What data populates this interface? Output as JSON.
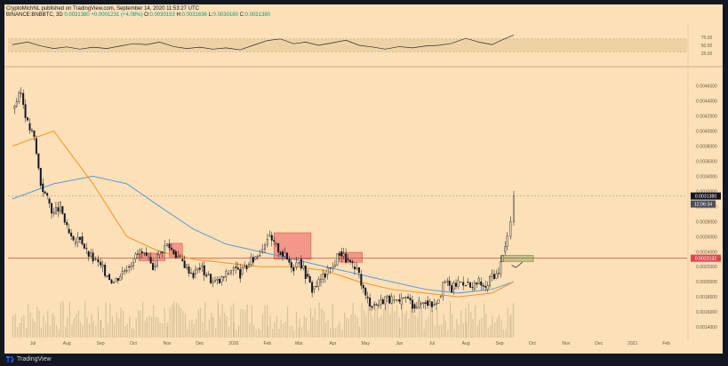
{
  "header": {
    "line1": "CryptoMichNL published on TradingView.com, September 14, 2020 11:53:27 UTC",
    "symbol": "BINANCE:BNBBTC, 3D",
    "last": "0.0031380",
    "change": "+0.0001231 (+4.08%)",
    "o_label": "O:",
    "o_value": "0.0030153",
    "h_label": "H:",
    "h_value": "0.0031636",
    "l_label": "L:",
    "l_value": "0.0030180",
    "c_label": "C:",
    "c_value": "0.0031380"
  },
  "footer": {
    "brand": "TradingView"
  },
  "colors": {
    "background": "#fbe0b8",
    "candle": "#131722",
    "ma_fast": "#f7931a",
    "ma_slow": "#5b9bd5",
    "hline": "#e0474c",
    "box_red": "#f28c80",
    "box_green": "#b7c98a",
    "rsi_band": "#eed2a6"
  },
  "chart_data": [
    {
      "type": "line",
      "name": "price",
      "x_ticks": [
        "Jul",
        "Aug",
        "Sep",
        "Oct",
        "Nov",
        "Dec",
        "2020",
        "Feb",
        "Mar",
        "Apr",
        "May",
        "Jun",
        "Jul",
        "Aug",
        "Sep",
        "Oct",
        "Nov",
        "Dec",
        "2021",
        "Feb"
      ],
      "y_ticks": [
        "0.0046000",
        "0.0044000",
        "0.0042000",
        "0.0040000",
        "0.0038000",
        "0.0036000",
        "0.0034000",
        "0.0032000",
        "0.0030000",
        "0.0028000",
        "0.0026000",
        "0.0024000",
        "0.0022000",
        "0.0020000",
        "0.0018000",
        "0.0016000",
        "0.0014000"
      ],
      "ylim": [
        0.00126,
        0.00476
      ],
      "series": [
        {
          "name": "BNBBTC",
          "x": [
            "2019-06-12",
            "2019-06-20",
            "2019-06-26",
            "2019-07-02",
            "2019-07-08",
            "2019-07-14",
            "2019-07-20",
            "2019-07-26",
            "2019-08-01",
            "2019-08-07",
            "2019-08-13",
            "2019-08-19",
            "2019-08-25",
            "2019-09-01",
            "2019-09-07",
            "2019-09-13",
            "2019-09-19",
            "2019-09-25",
            "2019-10-01",
            "2019-10-07",
            "2019-10-13",
            "2019-10-19",
            "2019-10-25",
            "2019-11-01",
            "2019-11-07",
            "2019-11-13",
            "2019-11-19",
            "2019-11-25",
            "2019-12-01",
            "2019-12-07",
            "2019-12-13",
            "2019-12-19",
            "2019-12-25",
            "2020-01-01",
            "2020-01-07",
            "2020-01-13",
            "2020-01-19",
            "2020-01-25",
            "2020-02-01",
            "2020-02-07",
            "2020-02-13",
            "2020-02-19",
            "2020-02-25",
            "2020-03-01",
            "2020-03-07",
            "2020-03-13",
            "2020-03-19",
            "2020-03-25",
            "2020-04-01",
            "2020-04-07",
            "2020-04-13",
            "2020-04-19",
            "2020-04-25",
            "2020-05-01",
            "2020-05-07",
            "2020-05-13",
            "2020-05-19",
            "2020-05-25",
            "2020-06-01",
            "2020-06-07",
            "2020-06-13",
            "2020-06-19",
            "2020-06-25",
            "2020-07-01",
            "2020-07-07",
            "2020-07-13",
            "2020-07-19",
            "2020-07-25",
            "2020-08-01",
            "2020-08-07",
            "2020-08-13",
            "2020-08-19",
            "2020-08-25",
            "2020-08-31",
            "2020-09-04",
            "2020-09-08",
            "2020-09-11",
            "2020-09-14"
          ],
          "values": [
            0.0043,
            0.0045,
            0.0041,
            0.0039,
            0.0033,
            0.0031,
            0.0029,
            0.003,
            0.0027,
            0.0025,
            0.0026,
            0.0024,
            0.0023,
            0.0022,
            0.0021,
            0.002,
            0.0021,
            0.0022,
            0.0023,
            0.0024,
            0.0023,
            0.0022,
            0.0024,
            0.0025,
            0.0024,
            0.0023,
            0.0022,
            0.0021,
            0.0022,
            0.0021,
            0.002,
            0.002,
            0.0021,
            0.0022,
            0.0021,
            0.0022,
            0.0023,
            0.0024,
            0.0026,
            0.0025,
            0.0024,
            0.0023,
            0.0022,
            0.0023,
            0.0021,
            0.0019,
            0.002,
            0.0021,
            0.0022,
            0.0024,
            0.0023,
            0.0022,
            0.0021,
            0.0018,
            0.0017,
            0.0017,
            0.0018,
            0.00175,
            0.0017,
            0.0018,
            0.0017,
            0.0017,
            0.00175,
            0.0017,
            0.0018,
            0.002,
            0.0019,
            0.002,
            0.002,
            0.0019,
            0.002,
            0.0019,
            0.0021,
            0.0021,
            0.0024,
            0.0026,
            0.0028,
            0.003138
          ]
        },
        {
          "name": "MA fast",
          "x": [
            "2019-06-12",
            "2019-07-20",
            "2019-08-25",
            "2019-09-25",
            "2019-10-25",
            "2019-11-25",
            "2019-12-25",
            "2020-01-25",
            "2020-02-25",
            "2020-03-25",
            "2020-04-25",
            "2020-05-25",
            "2020-06-25",
            "2020-07-25",
            "2020-08-25",
            "2020-09-14"
          ],
          "values": [
            0.0038,
            0.004,
            0.0033,
            0.0026,
            0.0024,
            0.0023,
            0.00225,
            0.0022,
            0.0022,
            0.00215,
            0.002,
            0.0019,
            0.00185,
            0.0018,
            0.00185,
            0.002
          ]
        },
        {
          "name": "MA slow",
          "x": [
            "2019-06-12",
            "2019-07-20",
            "2019-08-25",
            "2019-09-25",
            "2019-10-25",
            "2019-11-25",
            "2019-12-25",
            "2020-01-25",
            "2020-02-25",
            "2020-03-25",
            "2020-04-25",
            "2020-05-25",
            "2020-06-25",
            "2020-07-25",
            "2020-08-25",
            "2020-09-14"
          ],
          "values": [
            0.0031,
            0.0033,
            0.0034,
            0.0033,
            0.003,
            0.0027,
            0.0025,
            0.0024,
            0.0023,
            0.0022,
            0.0021,
            0.002,
            0.0019,
            0.00185,
            0.0019,
            0.002
          ]
        }
      ],
      "price_labels": [
        {
          "value": 0.003138,
          "text": "0.0031380",
          "countdown": "12:06:34"
        },
        {
          "value": 0.0023132,
          "text": "0.0023132"
        }
      ],
      "horizontal_line": 0.0023132
    },
    {
      "type": "line",
      "name": "RSI",
      "y_ticks": [
        "75.00",
        "50.00",
        "25.00"
      ],
      "ylim": [
        0,
        100
      ],
      "band": [
        30,
        70
      ],
      "series": [
        {
          "name": "RSI",
          "x": [
            "2019-06-12",
            "2019-06-26",
            "2019-07-08",
            "2019-07-20",
            "2019-08-01",
            "2019-08-13",
            "2019-08-25",
            "2019-09-07",
            "2019-09-19",
            "2019-10-01",
            "2019-10-13",
            "2019-10-25",
            "2019-11-07",
            "2019-11-19",
            "2019-12-01",
            "2019-12-13",
            "2019-12-25",
            "2020-01-07",
            "2020-01-19",
            "2020-02-01",
            "2020-02-13",
            "2020-02-25",
            "2020-03-07",
            "2020-03-19",
            "2020-04-01",
            "2020-04-13",
            "2020-04-25",
            "2020-05-07",
            "2020-05-19",
            "2020-06-01",
            "2020-06-13",
            "2020-06-25",
            "2020-07-07",
            "2020-07-19",
            "2020-08-01",
            "2020-08-13",
            "2020-08-25",
            "2020-09-04",
            "2020-09-14"
          ],
          "values": [
            52,
            60,
            48,
            40,
            45,
            38,
            44,
            40,
            48,
            55,
            52,
            60,
            46,
            40,
            44,
            38,
            42,
            36,
            50,
            65,
            70,
            55,
            60,
            50,
            58,
            66,
            50,
            45,
            38,
            46,
            42,
            48,
            50,
            56,
            72,
            60,
            52,
            68,
            82
          ]
        }
      ]
    }
  ]
}
